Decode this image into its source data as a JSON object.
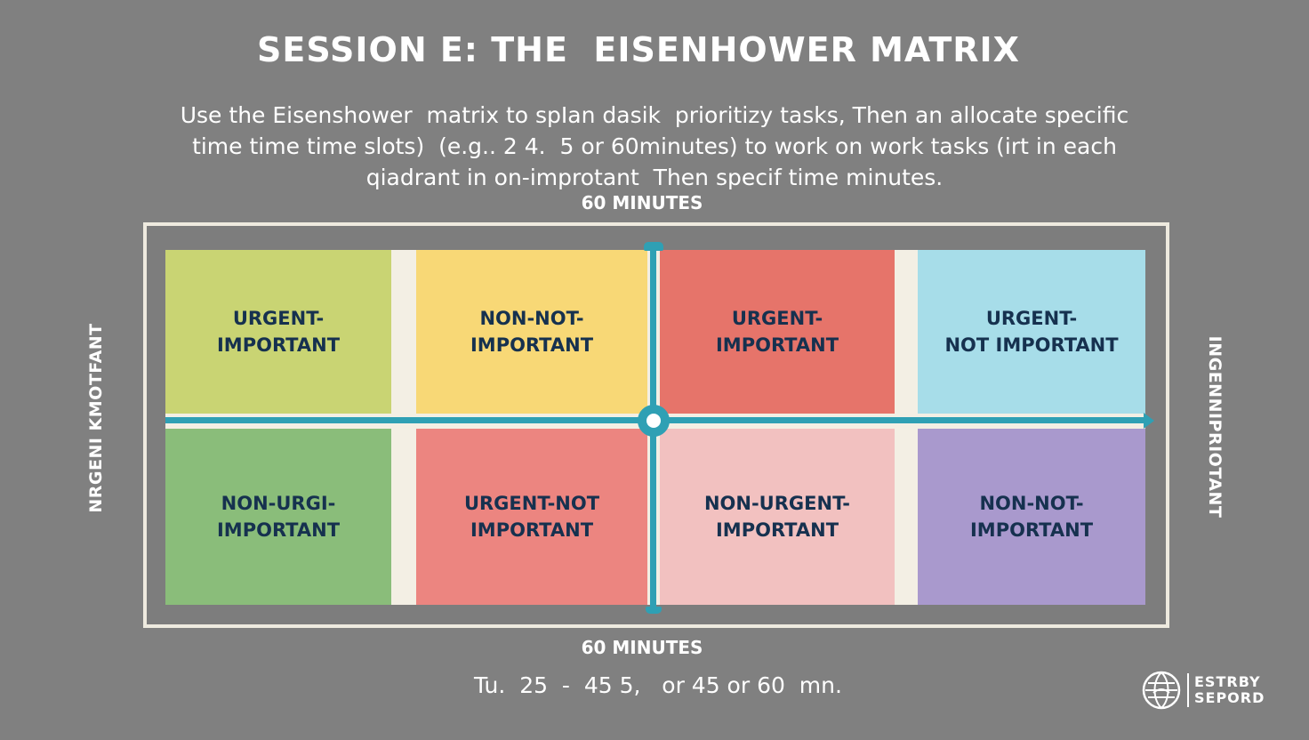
{
  "title": "SESSION E: THE  EISENHOWER MATRIX",
  "intro": {
    "line1": "Use the Eisenshower  matrix to spIan dasik  prioritizy tasks, Then an allocate specific",
    "line2": "time time time slots)  (e.g.. 2 4.  5 or 60minutes) to work on work tasks (irt in each",
    "line3": "qiadrant in on-improtant  Then specif time minutes."
  },
  "top_label": "60 MINUTES",
  "bottom_label": "60 MINUTES",
  "left_side_label": "NRGENI KMOTFANT",
  "right_side_label": "INGENNIPRIOTANT",
  "quadrants": [
    {
      "line1": "URGENT-",
      "line2": "IMPORTANT",
      "color": "#c9d473"
    },
    {
      "line1": "NON-NOT-",
      "line2": "IMPORTANT",
      "color": "#f8d876"
    },
    {
      "line1": "URGENT-",
      "line2": "IMPORTANT",
      "color": "#e6746a"
    },
    {
      "line1": "URGENT-",
      "line2": "NOT IMPORTANT",
      "color": "#a7dde9"
    },
    {
      "line1": "NON-URGI-",
      "line2": "IMPORTANT",
      "color": "#8abd7a"
    },
    {
      "line1": "URGENT-NOT",
      "line2": "IMPORTANT",
      "color": "#ec8580"
    },
    {
      "line1": "NON-URGENT-",
      "line2": "IMPORTANT",
      "color": "#f2c1c0"
    },
    {
      "line1": "NON-NOT-",
      "line2": "IMPORTANT",
      "color": "#a999cd"
    }
  ],
  "footer": "Tu.  25  -  45 5,   or 45 or 60  mn.",
  "logo": {
    "line1": "ESTRBY",
    "line2": "SEPORD",
    "icon": "globe-icon"
  },
  "colors": {
    "background": "#808080",
    "axis": "#2fa0b4",
    "frame": "#eeeadf",
    "quadrant_text": "#16314f"
  }
}
